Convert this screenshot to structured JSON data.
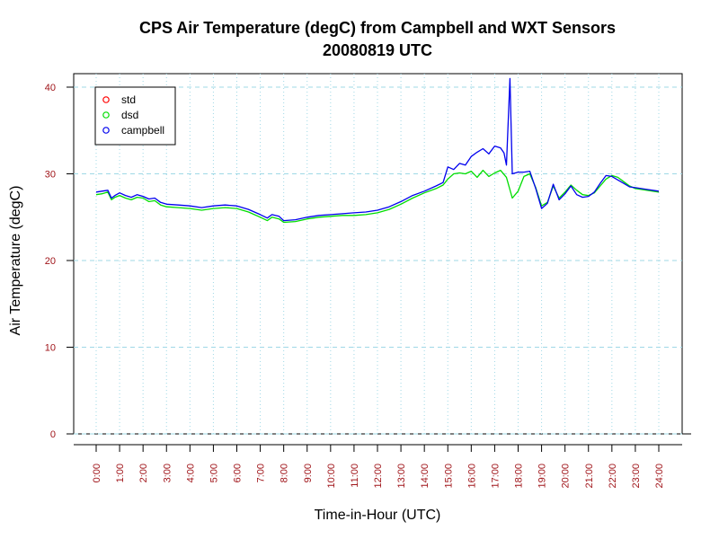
{
  "chart_data": {
    "type": "line",
    "title": "CPS Air Temperature (degC) from Campbell and WXT Sensors",
    "subtitle": "20080819  UTC",
    "xlabel": "Time-in-Hour (UTC)",
    "ylabel": "Air Temperature (degC)",
    "xlim": [
      0,
      24
    ],
    "ylim": [
      0,
      40
    ],
    "x_ticks": [
      0,
      1,
      2,
      3,
      4,
      5,
      6,
      7,
      8,
      9,
      10,
      11,
      12,
      13,
      14,
      15,
      16,
      17,
      18,
      19,
      20,
      21,
      22,
      23,
      24
    ],
    "x_tick_labels": [
      "0:00",
      "1:00",
      "2:00",
      "3:00",
      "4:00",
      "5:00",
      "6:00",
      "7:00",
      "8:00",
      "9:00",
      "10:00",
      "11:00",
      "12:00",
      "13:00",
      "14:00",
      "15:00",
      "16:00",
      "17:00",
      "18:00",
      "19:00",
      "20:00",
      "21:00",
      "22:00",
      "23:00",
      "24:00"
    ],
    "y_ticks": [
      0,
      10,
      20,
      30,
      40
    ],
    "y_tick_labels": [
      "0",
      "10",
      "20",
      "30",
      "40"
    ],
    "grid": true,
    "legend_position": "top-left",
    "series": [
      {
        "name": "std",
        "color": "#ff0000",
        "points": []
      },
      {
        "name": "dsd",
        "color": "#00dd00",
        "points": [
          [
            0,
            27.6
          ],
          [
            0.25,
            27.7
          ],
          [
            0.5,
            27.9
          ],
          [
            0.65,
            27.0
          ],
          [
            0.8,
            27.3
          ],
          [
            1,
            27.5
          ],
          [
            1.25,
            27.2
          ],
          [
            1.5,
            27.0
          ],
          [
            1.75,
            27.3
          ],
          [
            2,
            27.2
          ],
          [
            2.25,
            26.8
          ],
          [
            2.5,
            26.9
          ],
          [
            2.75,
            26.4
          ],
          [
            3,
            26.2
          ],
          [
            3.5,
            26.1
          ],
          [
            4,
            26.0
          ],
          [
            4.5,
            25.8
          ],
          [
            5,
            26.0
          ],
          [
            5.5,
            26.1
          ],
          [
            6,
            26.0
          ],
          [
            6.5,
            25.6
          ],
          [
            7,
            25.0
          ],
          [
            7.3,
            24.6
          ],
          [
            7.5,
            25.0
          ],
          [
            7.8,
            24.8
          ],
          [
            8,
            24.4
          ],
          [
            8.5,
            24.5
          ],
          [
            9,
            24.8
          ],
          [
            9.5,
            25.0
          ],
          [
            10,
            25.1
          ],
          [
            10.5,
            25.2
          ],
          [
            11,
            25.2
          ],
          [
            11.5,
            25.3
          ],
          [
            12,
            25.5
          ],
          [
            12.5,
            25.9
          ],
          [
            13,
            26.5
          ],
          [
            13.5,
            27.2
          ],
          [
            14,
            27.8
          ],
          [
            14.5,
            28.3
          ],
          [
            14.8,
            28.7
          ],
          [
            15,
            29.4
          ],
          [
            15.25,
            30.0
          ],
          [
            15.5,
            30.1
          ],
          [
            15.75,
            30.0
          ],
          [
            16,
            30.3
          ],
          [
            16.25,
            29.6
          ],
          [
            16.5,
            30.4
          ],
          [
            16.75,
            29.7
          ],
          [
            17,
            30.1
          ],
          [
            17.25,
            30.4
          ],
          [
            17.5,
            29.6
          ],
          [
            17.75,
            27.2
          ],
          [
            18,
            28.0
          ],
          [
            18.25,
            29.7
          ],
          [
            18.5,
            30.0
          ],
          [
            18.75,
            28.4
          ],
          [
            19,
            26.3
          ],
          [
            19.25,
            26.7
          ],
          [
            19.5,
            28.6
          ],
          [
            19.75,
            27.2
          ],
          [
            20,
            27.9
          ],
          [
            20.25,
            28.7
          ],
          [
            20.5,
            28.1
          ],
          [
            20.75,
            27.6
          ],
          [
            21,
            27.5
          ],
          [
            21.25,
            27.8
          ],
          [
            21.5,
            28.6
          ],
          [
            21.75,
            29.4
          ],
          [
            22,
            29.8
          ],
          [
            22.25,
            29.6
          ],
          [
            22.5,
            29.1
          ],
          [
            22.75,
            28.6
          ],
          [
            23,
            28.3
          ],
          [
            23.5,
            28.1
          ],
          [
            24,
            27.9
          ]
        ]
      },
      {
        "name": "campbell",
        "color": "#0000ee",
        "points": [
          [
            0,
            27.9
          ],
          [
            0.25,
            28.0
          ],
          [
            0.5,
            28.1
          ],
          [
            0.65,
            27.2
          ],
          [
            0.8,
            27.5
          ],
          [
            1,
            27.8
          ],
          [
            1.25,
            27.5
          ],
          [
            1.5,
            27.3
          ],
          [
            1.75,
            27.6
          ],
          [
            2,
            27.4
          ],
          [
            2.25,
            27.1
          ],
          [
            2.5,
            27.2
          ],
          [
            2.75,
            26.7
          ],
          [
            3,
            26.5
          ],
          [
            3.5,
            26.4
          ],
          [
            4,
            26.3
          ],
          [
            4.5,
            26.1
          ],
          [
            5,
            26.3
          ],
          [
            5.5,
            26.4
          ],
          [
            6,
            26.3
          ],
          [
            6.5,
            25.9
          ],
          [
            7,
            25.3
          ],
          [
            7.3,
            24.9
          ],
          [
            7.5,
            25.3
          ],
          [
            7.8,
            25.1
          ],
          [
            8,
            24.6
          ],
          [
            8.5,
            24.7
          ],
          [
            9,
            25.0
          ],
          [
            9.5,
            25.2
          ],
          [
            10,
            25.3
          ],
          [
            10.5,
            25.4
          ],
          [
            11,
            25.5
          ],
          [
            11.5,
            25.6
          ],
          [
            12,
            25.8
          ],
          [
            12.5,
            26.2
          ],
          [
            13,
            26.8
          ],
          [
            13.5,
            27.5
          ],
          [
            14,
            28.0
          ],
          [
            14.5,
            28.6
          ],
          [
            14.8,
            29.0
          ],
          [
            15,
            30.8
          ],
          [
            15.25,
            30.5
          ],
          [
            15.5,
            31.2
          ],
          [
            15.75,
            31.0
          ],
          [
            16,
            32.0
          ],
          [
            16.25,
            32.5
          ],
          [
            16.5,
            32.9
          ],
          [
            16.75,
            32.3
          ],
          [
            17,
            33.2
          ],
          [
            17.25,
            33.0
          ],
          [
            17.4,
            32.4
          ],
          [
            17.5,
            31.0
          ],
          [
            17.65,
            41.0
          ],
          [
            17.75,
            30.0
          ],
          [
            18,
            30.2
          ],
          [
            18.25,
            30.2
          ],
          [
            18.5,
            30.3
          ],
          [
            18.75,
            28.3
          ],
          [
            19,
            26.0
          ],
          [
            19.25,
            26.6
          ],
          [
            19.5,
            28.8
          ],
          [
            19.75,
            27.0
          ],
          [
            20,
            27.7
          ],
          [
            20.25,
            28.6
          ],
          [
            20.5,
            27.6
          ],
          [
            20.75,
            27.3
          ],
          [
            21,
            27.4
          ],
          [
            21.25,
            27.9
          ],
          [
            21.5,
            28.9
          ],
          [
            21.75,
            29.8
          ],
          [
            22,
            29.7
          ],
          [
            22.25,
            29.3
          ],
          [
            22.5,
            28.9
          ],
          [
            22.75,
            28.5
          ],
          [
            23,
            28.4
          ],
          [
            23.5,
            28.2
          ],
          [
            24,
            28.0
          ]
        ]
      }
    ]
  }
}
